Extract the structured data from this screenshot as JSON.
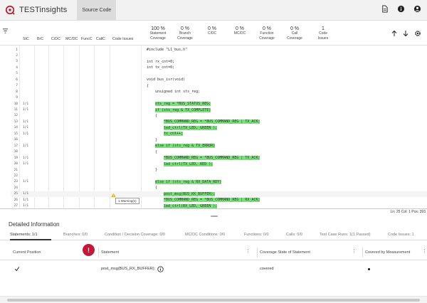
{
  "app": {
    "title": "TESTinsights",
    "active_tab": "Source Code"
  },
  "header_icons": [
    "document-icon",
    "info-icon",
    "account-icon"
  ],
  "columns": {
    "stc": "StC",
    "brc": "BrC",
    "cdc": "C/DC",
    "mcdc": "MC/DC",
    "funcc": "FuncC",
    "callc": "CallC",
    "code_issues": "Code Issues"
  },
  "metrics": [
    {
      "value": "100 %",
      "label1": "Statement",
      "label2": "Coverage"
    },
    {
      "value": "0 %",
      "label1": "Branch",
      "label2": "Coverage"
    },
    {
      "value": "0 %",
      "label1": "C/DC",
      "label2": ""
    },
    {
      "value": "0 %",
      "label1": "MC/DC",
      "label2": ""
    },
    {
      "value": "0 %",
      "label1": "Function",
      "label2": "Coverage"
    },
    {
      "value": "0 %",
      "label1": "Call",
      "label2": "Coverage"
    },
    {
      "value": "1",
      "label1": "Code",
      "label2": "Issues"
    }
  ],
  "code_lines": [
    {
      "n": "1",
      "stc": "",
      "text": "#include \"L1_bus.h\"",
      "cov": false
    },
    {
      "n": "2",
      "stc": "",
      "text": "",
      "cov": false
    },
    {
      "n": "3",
      "stc": "",
      "text": "int rx_cnt=0;",
      "cov": false
    },
    {
      "n": "4",
      "stc": "",
      "text": "int tx_cnt=0;",
      "cov": false
    },
    {
      "n": "5",
      "stc": "",
      "text": "",
      "cov": false
    },
    {
      "n": "6",
      "stc": "",
      "text": "void bus_isr(void)",
      "cov": false
    },
    {
      "n": "7",
      "stc": "",
      "text": "{",
      "cov": false
    },
    {
      "n": "8",
      "stc": "",
      "text": "    unsigned int sts_reg;",
      "cov": false
    },
    {
      "n": "9",
      "stc": "",
      "text": "",
      "cov": false
    },
    {
      "n": "10",
      "stc": "1/1",
      "text": "    sts_reg = *BUS_STATUS_REG;",
      "cov": true
    },
    {
      "n": "11",
      "stc": "1/1",
      "text": "    if (sts_reg & TX_COMPLETE)",
      "cov": true
    },
    {
      "n": "12",
      "stc": "",
      "text": "    {",
      "cov": false
    },
    {
      "n": "13",
      "stc": "1/1",
      "text": "        *BUS_COMMAND_REG = *BUS_COMMAND_REG | TX_ACK;",
      "cov": true
    },
    {
      "n": "14",
      "stc": "1/1",
      "text": "        led_ctrl(TX_LED, GREEN );",
      "cov": true
    },
    {
      "n": "15",
      "stc": "1/1",
      "text": "        tx_cnt++;",
      "cov": true
    },
    {
      "n": "16",
      "stc": "",
      "text": "    }",
      "cov": false
    },
    {
      "n": "17",
      "stc": "1/1",
      "text": "    else if (sts_reg & TX_ERROR)",
      "cov": true
    },
    {
      "n": "18",
      "stc": "",
      "text": "    {",
      "cov": false
    },
    {
      "n": "19",
      "stc": "1/1",
      "text": "        *BUS_COMMAND_REG = *BUS_COMMAND_REG | TX_ACK;",
      "cov": true
    },
    {
      "n": "20",
      "stc": "1/1",
      "text": "        led_ctrl(TX_LED, RED );",
      "cov": true
    },
    {
      "n": "21",
      "stc": "",
      "text": "    }",
      "cov": false
    },
    {
      "n": "22",
      "stc": "",
      "text": "",
      "cov": false
    },
    {
      "n": "23",
      "stc": "1/1",
      "text": "    else if (sts_reg & RX_DATA_RDY)",
      "cov": true
    },
    {
      "n": "24",
      "stc": "",
      "text": "    {",
      "cov": false
    },
    {
      "n": "25",
      "stc": "1/1",
      "text": "        post_msg(BUS_RX_BUFFER);",
      "cov": true
    },
    {
      "n": "26",
      "stc": "1/1",
      "text": "        *BUS_COMMAND_REG = *BUS_COMMAND_REG | RX_ACK;",
      "cov": true
    },
    {
      "n": "27",
      "stc": "1/1",
      "text": "        led_ctrl(RX_LED, GREEN );",
      "cov": true
    }
  ],
  "warning_tooltip": "1 Warning(s)",
  "status": "Ln: 25  Col: 1  Pos: 393",
  "detail": {
    "title": "Detailed Information",
    "tabs": [
      "Statements: 1/1",
      "Branches: 0/0",
      "Condition / Decision Coverage: 0/0",
      "MC/DC Conditions: 0/0",
      "Functions: 0/0",
      "Calls: 0/0",
      "Test Case Runs: 1(1 Passed)",
      "Code Issues: 1"
    ],
    "table_headers": [
      "Current Position",
      "Statement",
      "Coverage State of Statement",
      "Covered by Measurement"
    ],
    "row": {
      "statement": "post_msg(BUS_RX_BUFFER);",
      "state": "covered"
    }
  },
  "colors": {
    "covered": "#7be07b",
    "badge": "#c2183c"
  }
}
